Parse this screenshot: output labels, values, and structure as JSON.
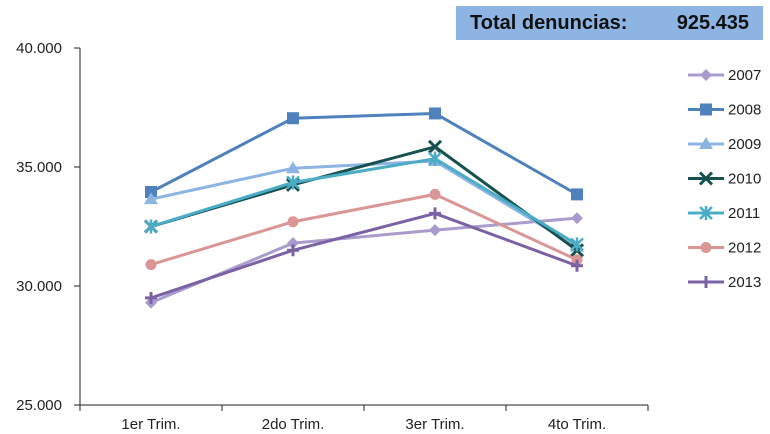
{
  "total": {
    "label": "Total denuncias:",
    "value": "925.435"
  },
  "chart_data": {
    "type": "line",
    "categories": [
      "1er Trim.",
      "2do Trim.",
      "3er Trim.",
      "4to Trim."
    ],
    "ylim": [
      25000,
      40000
    ],
    "yticks": [
      25000,
      30000,
      35000,
      40000
    ],
    "ytick_labels": [
      "25.000",
      "30.000",
      "35.000",
      "40.000"
    ],
    "grid": false,
    "legend_position": "right",
    "series": [
      {
        "name": "2007",
        "color": "#a99bcc",
        "marker": "diamond",
        "values": [
          29300,
          31800,
          32350,
          32850
        ]
      },
      {
        "name": "2008",
        "color": "#4f81bd",
        "marker": "square",
        "values": [
          33950,
          37050,
          37250,
          33850
        ]
      },
      {
        "name": "2009",
        "color": "#8db4e2",
        "marker": "triangle",
        "values": [
          33650,
          34950,
          35250,
          31650
        ]
      },
      {
        "name": "2010",
        "color": "#17504f",
        "marker": "x",
        "values": [
          32500,
          34250,
          35850,
          31500
        ]
      },
      {
        "name": "2011",
        "color": "#4bacc6",
        "marker": "star",
        "values": [
          32500,
          34350,
          35350,
          31750
        ]
      },
      {
        "name": "2012",
        "color": "#d99694",
        "marker": "circle",
        "values": [
          30900,
          32700,
          33850,
          31100
        ]
      },
      {
        "name": "2013",
        "color": "#7b62a5",
        "marker": "plus",
        "values": [
          29500,
          31500,
          33050,
          30850
        ]
      }
    ]
  }
}
